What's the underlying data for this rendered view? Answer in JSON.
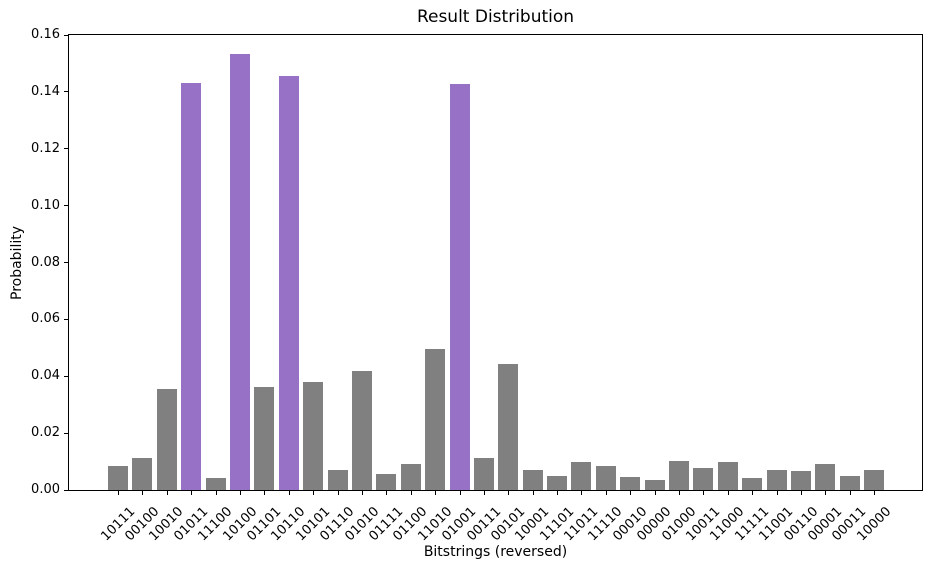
{
  "figure": {
    "title": "Result Distribution",
    "xlabel": "Bitstrings (reversed)",
    "ylabel": "Probability"
  },
  "chart_data": {
    "type": "bar",
    "title": "Result Distribution",
    "xlabel": "Bitstrings (reversed)",
    "ylabel": "Probability",
    "categories": [
      "10111",
      "00100",
      "10010",
      "01011",
      "11100",
      "10100",
      "01101",
      "10110",
      "10101",
      "01110",
      "01010",
      "01111",
      "01100",
      "11010",
      "01001",
      "00111",
      "00101",
      "10001",
      "11101",
      "11011",
      "11110",
      "00010",
      "00000",
      "01000",
      "10011",
      "11000",
      "11111",
      "11001",
      "00110",
      "00001",
      "00011",
      "10000"
    ],
    "values": [
      0.0085,
      0.0113,
      0.0355,
      0.1432,
      0.0042,
      0.1535,
      0.0362,
      0.1456,
      0.038,
      0.007,
      0.0418,
      0.0057,
      0.009,
      0.0497,
      0.1428,
      0.0113,
      0.0443,
      0.007,
      0.005,
      0.01,
      0.0085,
      0.0045,
      0.0035,
      0.0102,
      0.0078,
      0.01,
      0.0042,
      0.007,
      0.0068,
      0.0092,
      0.005,
      0.007
    ],
    "highlight_indices": [
      3,
      5,
      7,
      14
    ],
    "highlighted_categories": [
      "01011",
      "10100",
      "10110",
      "01001"
    ],
    "bar_color_default": "#808080",
    "bar_color_highlight": "#9671C5",
    "ylim": [
      0,
      0.16
    ],
    "yticks": [
      "0.00",
      "0.02",
      "0.04",
      "0.06",
      "0.08",
      "0.10",
      "0.12",
      "0.14",
      "0.16"
    ],
    "x_tick_rotation_deg": 45,
    "grid": false,
    "legend": false
  }
}
